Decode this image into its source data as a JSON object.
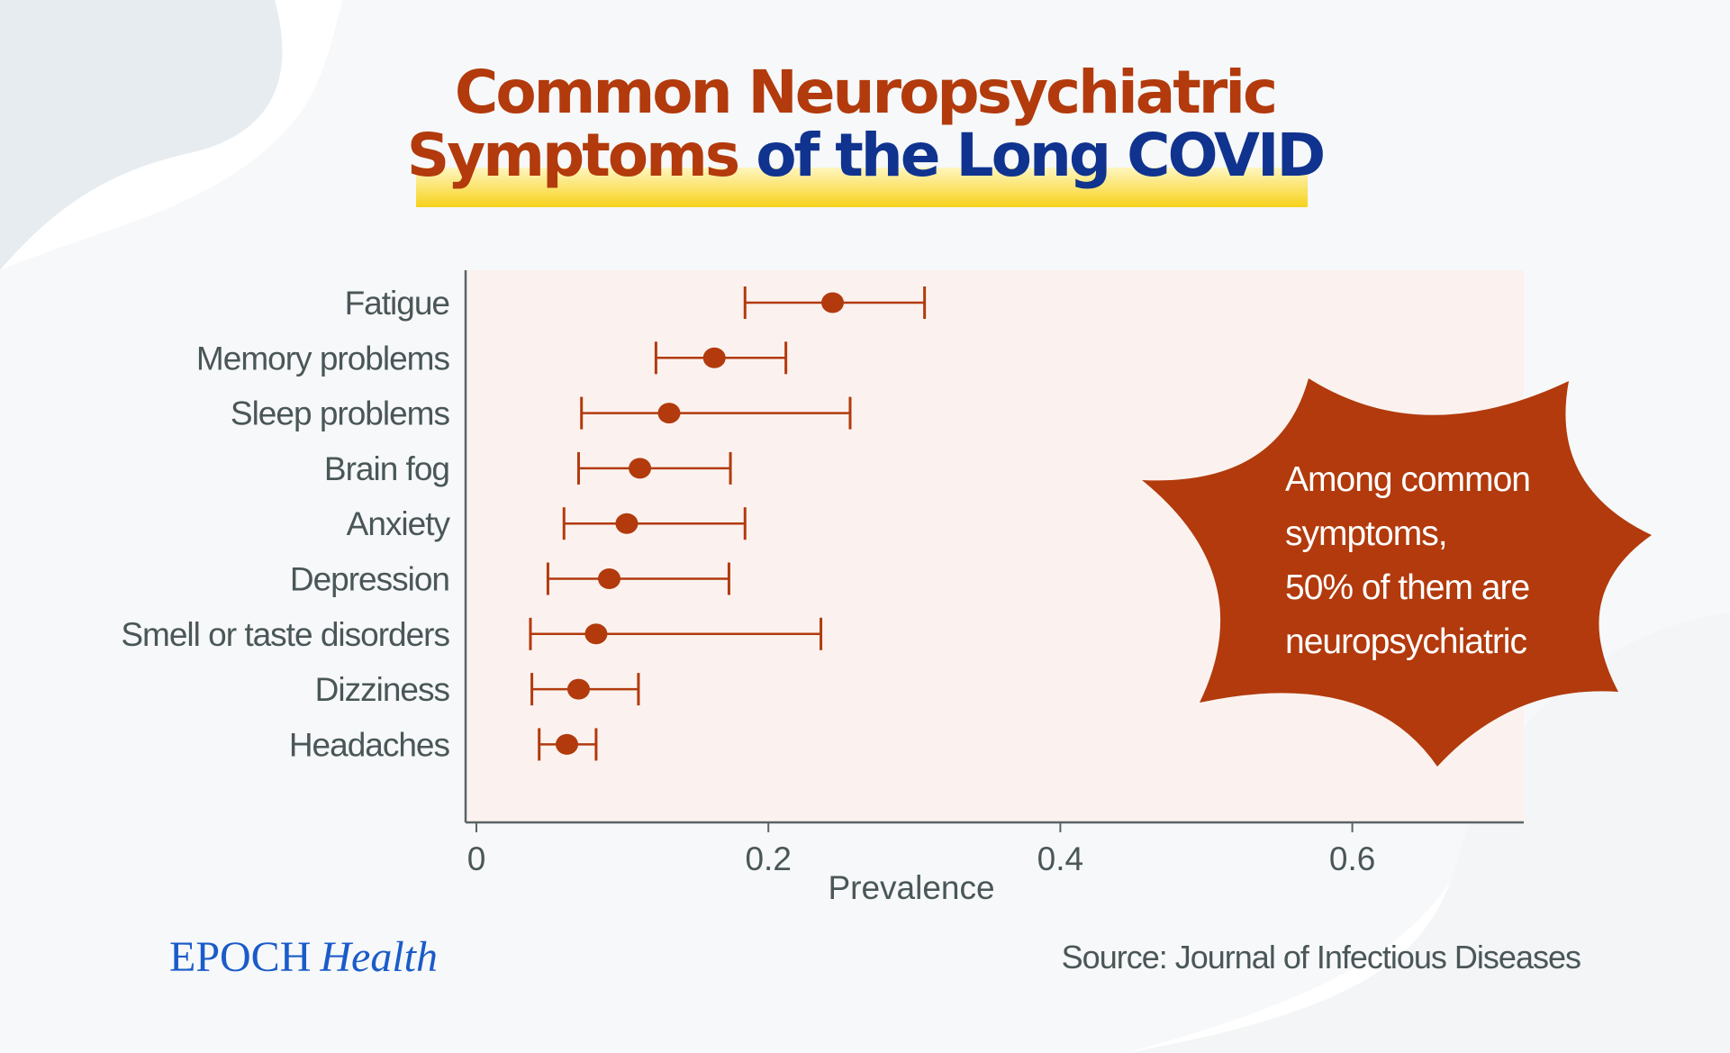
{
  "title": {
    "line1": "Common Neuropsychiatric",
    "line2_part1": "Symptoms",
    "line2_part2": " of the Long COVID"
  },
  "callout": {
    "lines": [
      "Among common",
      "symptoms,",
      "50%  of them are",
      "neuropsychiatric"
    ]
  },
  "logo": {
    "part1": "EPOCH",
    "part2": "Health"
  },
  "source": "Source: Journal of Infectious Diseases",
  "colors": {
    "title_red": "#b23a0c",
    "title_blue": "#10338f",
    "marker": "#b23a0c",
    "plot_bg": "#fbf2ef",
    "highlight": "#f7d21a",
    "callout": "#b23a0c"
  },
  "chart_data": {
    "type": "scatter",
    "subtype": "point-with-error-bars",
    "xlabel": "Prevalence",
    "xlim": [
      0,
      0.7
    ],
    "xticks": [
      0,
      0.2,
      0.4,
      0.6
    ],
    "xtick_labels": [
      "0",
      "0.2",
      "0.4",
      "0.6"
    ],
    "grid": false,
    "categories": [
      "Fatigue",
      "Memory problems",
      "Sleep problems",
      "Brain fog",
      "Anxiety",
      "Depression",
      "Smell or taste disorders",
      "Dizziness",
      "Headaches"
    ],
    "values": [
      0.244,
      0.163,
      0.132,
      0.112,
      0.103,
      0.091,
      0.082,
      0.07,
      0.062
    ],
    "lower": [
      0.184,
      0.123,
      0.072,
      0.07,
      0.06,
      0.049,
      0.037,
      0.038,
      0.043
    ],
    "upper": [
      0.307,
      0.212,
      0.256,
      0.174,
      0.184,
      0.173,
      0.236,
      0.111,
      0.082
    ]
  }
}
